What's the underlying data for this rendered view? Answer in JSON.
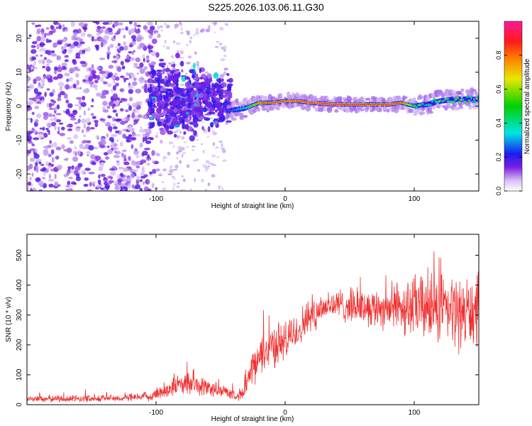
{
  "figure_title": "S225.2026.103.06.11.G30",
  "chart_data": [
    {
      "type": "heatmap",
      "title": "S225.2026.103.06.11.G30",
      "xlabel": "Height of straight line (km)",
      "ylabel": "Frequency (Hz)",
      "xlim": [
        -200,
        150
      ],
      "ylim": [
        -25,
        25
      ],
      "x_ticks": [
        -100,
        0,
        100
      ],
      "x_tick_labels": [
        "-100",
        "0",
        "100"
      ],
      "y_ticks": [
        -20,
        -10,
        0,
        10,
        20
      ],
      "y_tick_labels": [
        "-20",
        "-10",
        "0",
        "10",
        "20"
      ],
      "colorbar": {
        "label": "Normalized spectral amplitude",
        "range": [
          0,
          1
        ],
        "ticks": [
          0.0,
          0.2,
          0.4,
          0.6,
          0.8
        ],
        "tick_labels": [
          "0.0",
          "0.2",
          "0.4",
          "0.6",
          "0.8"
        ],
        "colormap": [
          "#ffffff",
          "#d8c2f5",
          "#7a1fe0",
          "#1c1cf0",
          "#00e5e5",
          "#00d000",
          "#e8e800",
          "#ff8000",
          "#ff1a1a",
          "#ff1a9a"
        ]
      },
      "regions": [
        {
          "name": "scattered noise",
          "x": [
            -200,
            -100
          ],
          "freq": [
            -25,
            25
          ],
          "amplitude": 0.15
        },
        {
          "name": "transition cluster",
          "x": [
            -105,
            -42
          ],
          "freq": [
            -10,
            10
          ],
          "amplitude": 0.3
        },
        {
          "name": "stable signal band",
          "x": [
            -45,
            150
          ],
          "freq_center": 0.5,
          "amplitude": 0.9
        }
      ],
      "ridge_frequency": {
        "x": [
          -45,
          -30,
          -20,
          -10,
          0,
          10,
          20,
          40,
          60,
          70,
          80,
          90,
          100,
          110,
          120,
          130,
          140,
          150
        ],
        "freq": [
          -1.5,
          -0.5,
          1,
          1,
          1.5,
          1.5,
          1,
          0.5,
          0.5,
          0.5,
          0.5,
          1,
          0,
          0.5,
          1.5,
          2,
          2,
          2
        ],
        "amplitude": [
          0.25,
          0.4,
          0.85,
          0.9,
          0.9,
          0.9,
          0.95,
          0.95,
          0.95,
          0.9,
          0.95,
          0.9,
          0.5,
          0.45,
          0.5,
          0.55,
          0.5,
          0.5
        ]
      }
    },
    {
      "type": "line",
      "xlabel": "Height of straight line (km)",
      "ylabel": "SNR (10 * v/v)",
      "xlim": [
        -200,
        150
      ],
      "ylim": [
        0,
        570
      ],
      "x_ticks": [
        -100,
        0,
        100
      ],
      "x_tick_labels": [
        "-100",
        "0",
        "100"
      ],
      "y_ticks": [
        0,
        100,
        200,
        300,
        400,
        500
      ],
      "y_tick_labels": [
        "0",
        "100",
        "200",
        "300",
        "400",
        "500"
      ],
      "series": [
        {
          "name": "SNR",
          "color": "#f03030",
          "x": [
            -200,
            -180,
            -160,
            -140,
            -120,
            -105,
            -95,
            -85,
            -75,
            -65,
            -55,
            -45,
            -38,
            -32,
            -28,
            -20,
            -10,
            0,
            10,
            20,
            30,
            40,
            50,
            60,
            70,
            80,
            90,
            100,
            110,
            120,
            130,
            140,
            150
          ],
          "y_mean": [
            20,
            20,
            20,
            22,
            22,
            28,
            45,
            65,
            70,
            62,
            52,
            42,
            30,
            40,
            90,
            160,
            200,
            210,
            250,
            300,
            330,
            335,
            330,
            330,
            325,
            325,
            330,
            325,
            330,
            320,
            310,
            310,
            305
          ],
          "y_spread": [
            15,
            15,
            15,
            15,
            15,
            18,
            35,
            45,
            45,
            40,
            35,
            25,
            18,
            30,
            60,
            80,
            90,
            85,
            80,
            75,
            70,
            65,
            70,
            75,
            80,
            90,
            110,
            130,
            150,
            150,
            150,
            150,
            150
          ]
        }
      ]
    }
  ]
}
